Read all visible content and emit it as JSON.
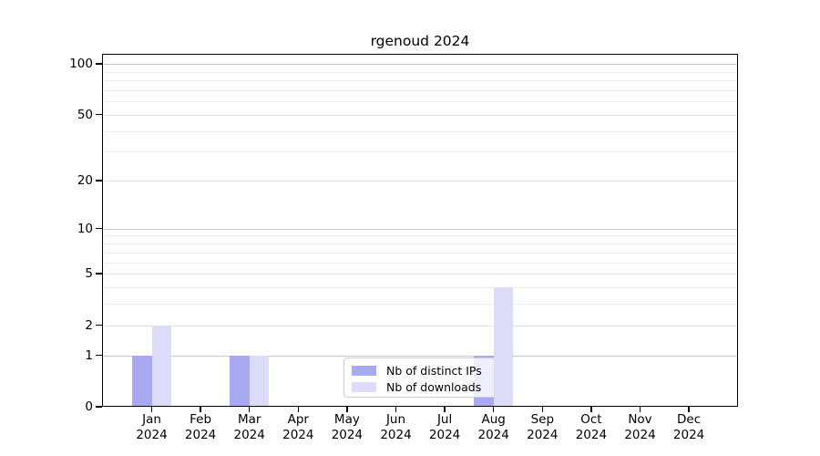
{
  "chart_data": {
    "type": "bar",
    "title": "rgenoud 2024",
    "categories": [
      "Jan",
      "Feb",
      "Mar",
      "Apr",
      "May",
      "Jun",
      "Jul",
      "Aug",
      "Sep",
      "Oct",
      "Nov",
      "Dec"
    ],
    "x_tick_year": "2024",
    "series": [
      {
        "name": "Nb of distinct IPs",
        "color": "#a9a9f1",
        "values": [
          1,
          0,
          1,
          0,
          0,
          0,
          0,
          1,
          0,
          0,
          0,
          0
        ]
      },
      {
        "name": "Nb of downloads",
        "color": "#dcdcf8",
        "values": [
          2,
          0,
          1,
          0,
          0,
          0,
          0,
          4,
          0,
          0,
          0,
          0
        ]
      }
    ],
    "yscale": "log10(1+x)",
    "ylim": [
      0,
      115
    ],
    "yticks": [
      0,
      1,
      2,
      5,
      10,
      20,
      50,
      100
    ],
    "major_gridlines": [
      1,
      10,
      100
    ],
    "medium_gridlines": [
      2,
      5,
      20,
      50
    ],
    "minor_gridlines": [
      3,
      4,
      6,
      7,
      8,
      9,
      30,
      40,
      60,
      70,
      80,
      90
    ],
    "grid": true,
    "legend_position": "lower center-right inside plot",
    "colors": {
      "major_grid": "#c4c4c4",
      "medium_grid": "#e2e2e2",
      "minor_grid": "#eeeeee",
      "axis": "#000000",
      "background": "#ffffff"
    }
  }
}
